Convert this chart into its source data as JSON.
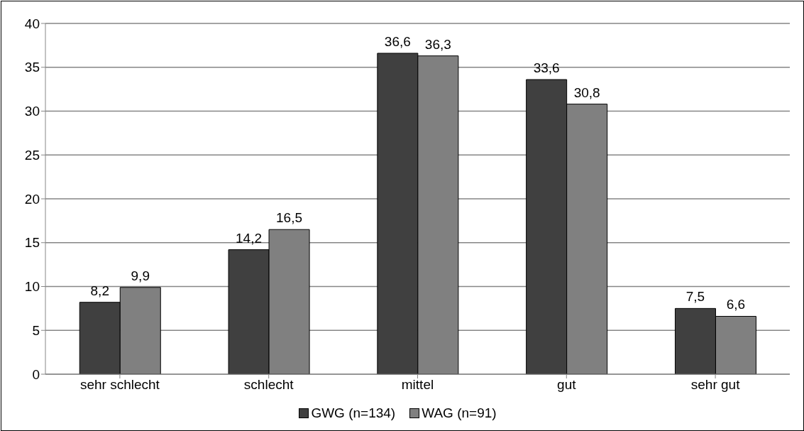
{
  "chart_data": {
    "type": "bar",
    "categories": [
      "sehr schlecht",
      "schlecht",
      "mittel",
      "gut",
      "sehr gut"
    ],
    "series": [
      {
        "name": "GWG (n=134)",
        "color": "#404040",
        "values": [
          8.2,
          14.2,
          36.6,
          33.6,
          7.5
        ],
        "value_labels": [
          "8,2",
          "14,2",
          "36,6",
          "33,6",
          "7,5"
        ]
      },
      {
        "name": "WAG (n=91)",
        "color": "#808080",
        "values": [
          9.9,
          16.5,
          36.3,
          30.8,
          6.6
        ],
        "value_labels": [
          "9,9",
          "16,5",
          "36,3",
          "30,8",
          "6,6"
        ]
      }
    ],
    "ylim": [
      0,
      40
    ],
    "yticks": [
      0,
      5,
      10,
      15,
      20,
      25,
      30,
      35,
      40
    ],
    "grid": "y",
    "legend": "bottom"
  }
}
